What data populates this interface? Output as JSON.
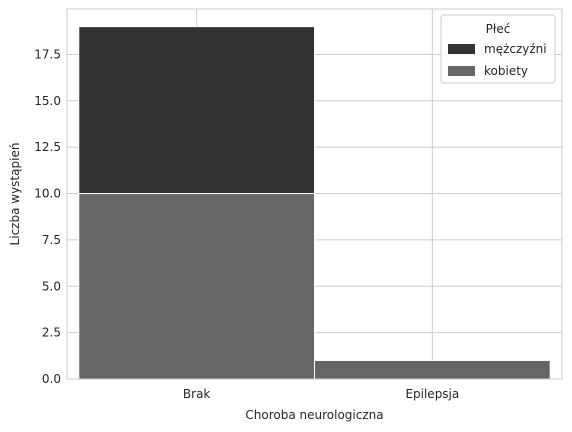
{
  "chart_data": {
    "type": "bar",
    "stacked": true,
    "categories": [
      "Brak",
      "Epilepsja"
    ],
    "series": [
      {
        "name": "kobiety",
        "values": [
          10,
          1
        ],
        "color": "#666666"
      },
      {
        "name": "mężczyźni",
        "values": [
          9,
          0
        ],
        "color": "#333333"
      }
    ],
    "xlabel": "Choroba neurologiczna",
    "ylabel": "Liczba wystąpień",
    "ylim": [
      0,
      19.95
    ],
    "yticks": [
      "0.0",
      "2.5",
      "5.0",
      "7.5",
      "10.0",
      "12.5",
      "15.0",
      "17.5"
    ],
    "grid": true,
    "legend": {
      "title": "Płeć",
      "placement": "top-right",
      "entries": [
        {
          "label": "mężczyźni",
          "color": "#333333"
        },
        {
          "label": "kobiety",
          "color": "#666666"
        }
      ]
    }
  }
}
